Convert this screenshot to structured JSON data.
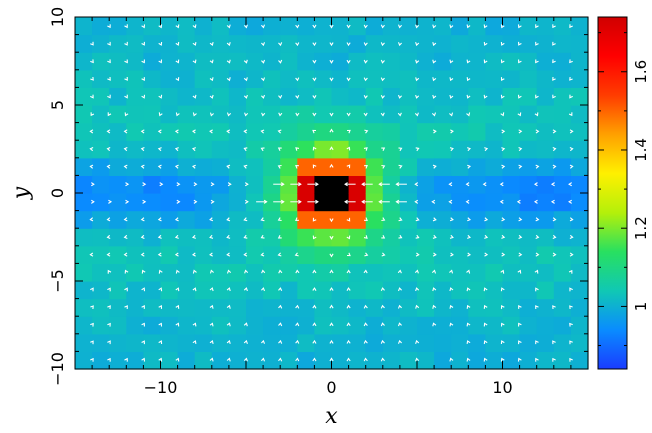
{
  "chart_data": {
    "type": "heatmap",
    "title": "",
    "xlabel": "x",
    "ylabel": "y",
    "xlim": [
      -15,
      15
    ],
    "ylim": [
      -10,
      10
    ],
    "x_ticks": [
      -10,
      0,
      10
    ],
    "x_tick_labels": [
      "−10",
      "0",
      "10"
    ],
    "y_ticks": [
      -10,
      -5,
      0,
      5,
      10
    ],
    "y_tick_labels": [
      "−10",
      "−5",
      "0",
      "5",
      "10"
    ],
    "grid": false,
    "cell_size": 1,
    "colorbar": {
      "range": [
        0.84,
        1.74
      ],
      "ticks": [
        1.0,
        1.2,
        1.4,
        1.6
      ],
      "tick_labels": [
        "1",
        "1.2",
        "1.4",
        "1.6"
      ],
      "colors": [
        "#1a3cff",
        "#0a8cff",
        "#10c8b4",
        "#28e060",
        "#b4f00a",
        "#fff000",
        "#ffa000",
        "#ff3c00",
        "#ff0000",
        "#d00000"
      ]
    },
    "field": {
      "description_values": "density ratio, ~1 far field, low band along y=0, peak near origin",
      "background_value": 1.0,
      "low_band_value": 0.9,
      "peak_value": 1.74,
      "center_value": 2.0,
      "center_color": "#000000"
    },
    "vectors": {
      "color": "#ffffff",
      "pattern": "flow toward origin along y=0, away elsewhere"
    }
  }
}
